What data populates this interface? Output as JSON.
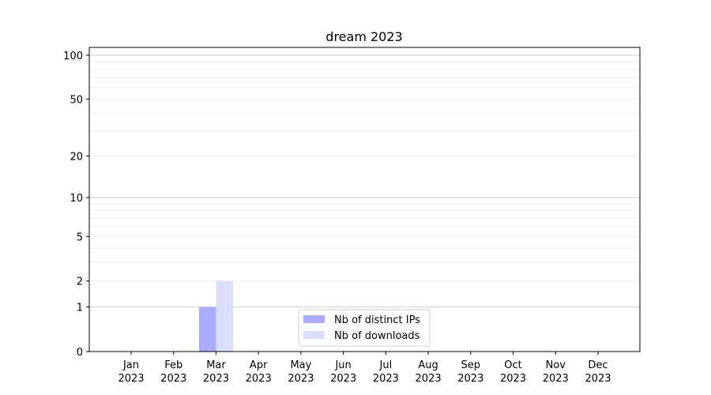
{
  "chart_data": {
    "type": "bar",
    "title": "dream 2023",
    "xlabel": "",
    "ylabel": "",
    "yscale": "log(1+y)",
    "ylim": [
      0,
      113
    ],
    "yticks": [
      0,
      1,
      2,
      5,
      10,
      20,
      50,
      100
    ],
    "ytick_labels": [
      "0",
      "1",
      "2",
      "5",
      "10",
      "20",
      "50",
      "100"
    ],
    "grid": true,
    "categories": [
      "Jan\n2023",
      "Feb\n2023",
      "Mar\n2023",
      "Apr\n2023",
      "May\n2023",
      "Jun\n2023",
      "Jul\n2023",
      "Aug\n2023",
      "Sep\n2023",
      "Oct\n2023",
      "Nov\n2023",
      "Dec\n2023"
    ],
    "series": [
      {
        "name": "Nb of distinct IPs",
        "color": "#aaaaff",
        "values": [
          0,
          0,
          1,
          0,
          0,
          0,
          0,
          0,
          0,
          0,
          0,
          0
        ]
      },
      {
        "name": "Nb of downloads",
        "color": "#ddddff",
        "values": [
          0,
          0,
          2,
          0,
          0,
          0,
          0,
          0,
          0,
          0,
          0,
          0
        ]
      }
    ],
    "legend_position": "bottom-center"
  }
}
